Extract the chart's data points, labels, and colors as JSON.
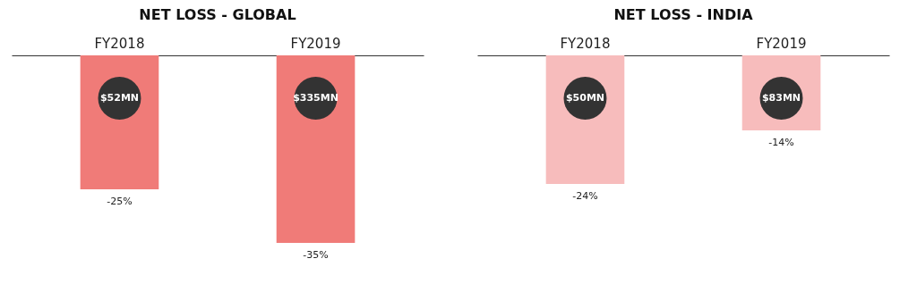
{
  "chart_data": [
    {
      "type": "bar",
      "title": "NET LOSS - GLOBAL",
      "categories": [
        "FY2018",
        "FY2019"
      ],
      "values": [
        -25,
        -35
      ],
      "value_labels": [
        "-25%",
        "-35%"
      ],
      "color": "#f07b78",
      "tick_labels": "x",
      "annotations": [
        "$52MN",
        "$335MN"
      ]
    },
    {
      "type": "bar",
      "title": "NET LOSS - INDIA",
      "categories": [
        "FY2018",
        "FY2019"
      ],
      "values": [
        -24,
        -14
      ],
      "value_labels": [
        "-24%",
        "-14%"
      ],
      "color": "#f7bcbc",
      "tick_labels": "x",
      "annotations": [
        "$50MN",
        "$83MN"
      ]
    }
  ]
}
